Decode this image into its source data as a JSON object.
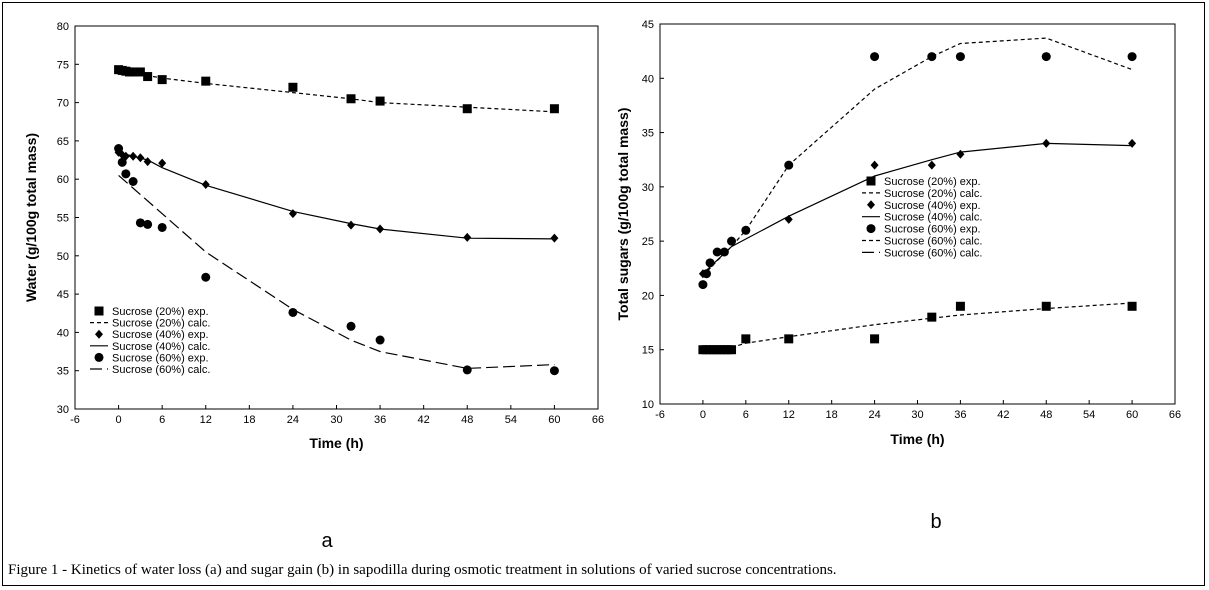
{
  "caption": "Figure 1 - Kinetics of water loss (a) and sugar gain (b) in sapodilla during osmotic treatment in solutions of varied sucrose concentrations.",
  "chart_data": [
    {
      "type": "scatter",
      "panel_label": "a",
      "xlabel": "Time (h)",
      "ylabel": "Water (g/100g total mass)",
      "xlim": [
        -6,
        66
      ],
      "ylim": [
        30,
        80
      ],
      "xticks": [
        -6,
        0,
        6,
        12,
        18,
        24,
        30,
        36,
        42,
        48,
        54,
        60,
        66
      ],
      "yticks": [
        30,
        35,
        40,
        45,
        50,
        55,
        60,
        65,
        70,
        75,
        80
      ],
      "legend_position": "bottom-left",
      "series": [
        {
          "name": "Sucrose (20%) exp.",
          "marker": "square",
          "x": [
            0,
            0.5,
            1,
            1.5,
            2,
            3,
            4,
            6,
            12,
            24,
            32,
            36,
            48,
            60
          ],
          "y": [
            74.3,
            74.2,
            74.1,
            74,
            74,
            74,
            73.4,
            73,
            72.8,
            72,
            70.5,
            70.2,
            69.2,
            69.2
          ]
        },
        {
          "name": "Sucrose (20%) calc.",
          "line": "short-dash",
          "x": [
            0,
            6,
            12,
            24,
            32,
            36,
            48,
            60
          ],
          "y": [
            74.2,
            73.2,
            72.5,
            71.3,
            70.5,
            70,
            69.4,
            68.8
          ]
        },
        {
          "name": "Sucrose (40%) exp.",
          "marker": "diamond",
          "x": [
            0,
            0.5,
            1,
            2,
            3,
            4,
            6,
            12,
            24,
            32,
            36,
            48,
            60
          ],
          "y": [
            63.5,
            63.2,
            63,
            63,
            62.8,
            62.3,
            62.1,
            59.3,
            55.5,
            54,
            53.5,
            52.4,
            52.3
          ]
        },
        {
          "name": "Sucrose (40%) calc.",
          "line": "solid",
          "x": [
            0,
            4,
            6,
            12,
            24,
            32,
            36,
            48,
            60
          ],
          "y": [
            63.5,
            62.5,
            61.5,
            59.2,
            55.8,
            54.2,
            53.5,
            52.3,
            52.2
          ]
        },
        {
          "name": "Sucrose (60%) exp.",
          "marker": "circle",
          "x": [
            0,
            0.5,
            1,
            2,
            3,
            4,
            6,
            12,
            24,
            32,
            36,
            48,
            60
          ],
          "y": [
            64,
            62.2,
            60.7,
            59.7,
            54.3,
            54.1,
            53.7,
            47.2,
            42.6,
            40.8,
            39,
            35.1,
            35
          ]
        },
        {
          "name": "Sucrose (60%) calc.",
          "line": "long-dash",
          "x": [
            0,
            6,
            12,
            24,
            32,
            36,
            48,
            60
          ],
          "y": [
            60.5,
            55.5,
            50.5,
            43,
            39,
            37.5,
            35.3,
            35.8
          ]
        }
      ]
    },
    {
      "type": "scatter",
      "panel_label": "b",
      "xlabel": "Time (h)",
      "ylabel": "Total sugars (g/100g total mass)",
      "xlim": [
        -6,
        66
      ],
      "ylim": [
        10,
        45
      ],
      "xticks": [
        -6,
        0,
        6,
        12,
        18,
        24,
        30,
        36,
        42,
        48,
        54,
        60,
        66
      ],
      "yticks": [
        10,
        15,
        20,
        25,
        30,
        35,
        40,
        45
      ],
      "legend_position": "right",
      "series": [
        {
          "name": "Sucrose (20%) exp.",
          "marker": "square",
          "x": [
            0,
            0.5,
            1,
            1.5,
            2,
            2.5,
            3,
            3.5,
            4,
            6,
            12,
            24,
            32,
            36,
            48,
            60
          ],
          "y": [
            15,
            15,
            15,
            15,
            15,
            15,
            15,
            15,
            15,
            16,
            16,
            16,
            18,
            19,
            19,
            19
          ]
        },
        {
          "name": "Sucrose (20%) calc.",
          "line": "short-dash",
          "x": [
            4,
            6,
            12,
            24,
            32,
            36,
            48,
            60
          ],
          "y": [
            15.2,
            15.6,
            16.2,
            17.3,
            17.9,
            18.2,
            18.8,
            19.3
          ]
        },
        {
          "name": "Sucrose (40%) exp.",
          "marker": "diamond",
          "x": [
            0,
            0.5,
            1,
            2,
            3,
            4,
            6,
            12,
            24,
            32,
            36,
            48,
            60
          ],
          "y": [
            22,
            22,
            23,
            24,
            24,
            25,
            26,
            27,
            32,
            32,
            33,
            34,
            34
          ]
        },
        {
          "name": "Sucrose (40%) calc.",
          "line": "solid",
          "x": [
            0,
            4,
            6,
            12,
            24,
            32,
            36,
            48,
            60
          ],
          "y": [
            22,
            24.5,
            25.2,
            27.3,
            31,
            32.5,
            33.2,
            34,
            33.8
          ]
        },
        {
          "name": "Sucrose (60%) exp.",
          "marker": "circle",
          "x": [
            0,
            0.5,
            1,
            2,
            3,
            4,
            6,
            12,
            24,
            32,
            36,
            48,
            60
          ],
          "y": [
            21,
            22,
            23,
            24,
            24,
            25,
            26,
            32,
            42,
            42,
            42,
            42,
            42
          ]
        },
        {
          "name": "Sucrose (60%) calc.",
          "line": "short-dash",
          "x": [
            0,
            2,
            4,
            6,
            12,
            24,
            32,
            36,
            48,
            60
          ],
          "y": [
            21.8,
            23.2,
            24.5,
            26,
            32,
            39,
            42,
            43.2,
            43.7,
            40.8
          ]
        },
        {
          "name": "Sucrose (60%) calc.",
          "line": "long-dash",
          "x": [],
          "y": []
        }
      ]
    }
  ]
}
